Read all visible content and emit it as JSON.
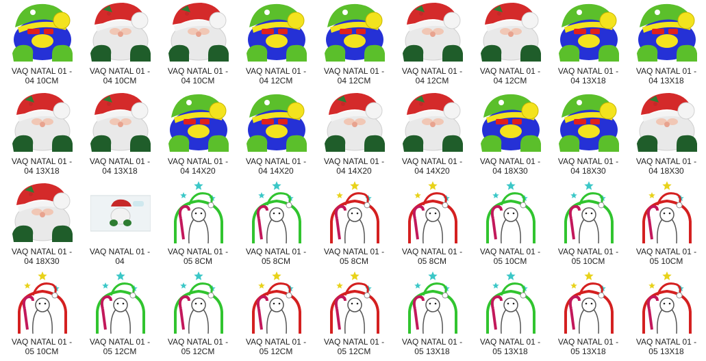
{
  "colors": {
    "santa_red": "#d42a2a",
    "santa_white": "#e9e9e9",
    "santa_green_dark": "#1f5d2a",
    "elf_green": "#5bbf2b",
    "elf_blue": "#2531d6",
    "elf_yellow": "#f3e31e",
    "elf_red": "#e0201c",
    "applique_red": "#d42020",
    "applique_green": "#31c42f",
    "star_cyan": "#3bc7c7",
    "star_yellow": "#e8d21a"
  },
  "files": [
    {
      "line1": "VAQ NATAL 01 -",
      "line2": "04 10CM",
      "icon": "elf-santa-icon"
    },
    {
      "line1": "VAQ NATAL 01 -",
      "line2": "04 10CM",
      "icon": "santa-face-icon"
    },
    {
      "line1": "VAQ NATAL 01 -",
      "line2": "04 10CM",
      "icon": "santa-face-icon"
    },
    {
      "line1": "VAQ NATAL 01 -",
      "line2": "04 12CM",
      "icon": "elf-santa-icon"
    },
    {
      "line1": "VAQ NATAL 01 -",
      "line2": "04 12CM",
      "icon": "elf-santa-icon"
    },
    {
      "line1": "VAQ NATAL 01 -",
      "line2": "04 12CM",
      "icon": "santa-face-icon"
    },
    {
      "line1": "VAQ NATAL 01 -",
      "line2": "04 12CM",
      "icon": "santa-face-icon"
    },
    {
      "line1": "VAQ NATAL 01 -",
      "line2": "04 13X18",
      "icon": "elf-santa-icon"
    },
    {
      "line1": "VAQ NATAL 01 -",
      "line2": "04 13X18",
      "icon": "elf-santa-icon"
    },
    {
      "line1": "VAQ NATAL 01 -",
      "line2": "04 13X18",
      "icon": "santa-face-icon"
    },
    {
      "line1": "VAQ NATAL 01 -",
      "line2": "04 13X18",
      "icon": "santa-face-icon"
    },
    {
      "line1": "VAQ NATAL 01 -",
      "line2": "04 14X20",
      "icon": "elf-santa-icon"
    },
    {
      "line1": "VAQ NATAL 01 -",
      "line2": "04 14X20",
      "icon": "elf-santa-icon"
    },
    {
      "line1": "VAQ NATAL 01 -",
      "line2": "04 14X20",
      "icon": "santa-face-icon"
    },
    {
      "line1": "VAQ NATAL 01 -",
      "line2": "04 14X20",
      "icon": "santa-face-icon"
    },
    {
      "line1": "VAQ NATAL 01 -",
      "line2": "04 18X30",
      "icon": "elf-santa-icon"
    },
    {
      "line1": "VAQ NATAL 01 -",
      "line2": "04 18X30",
      "icon": "elf-santa-icon"
    },
    {
      "line1": "VAQ NATAL 01 -",
      "line2": "04 18X30",
      "icon": "santa-face-icon"
    },
    {
      "line1": "VAQ NATAL 01 -",
      "line2": "04 18X30",
      "icon": "santa-face-icon"
    },
    {
      "line1": "VAQ NATAL 01 -",
      "line2": "04",
      "icon": "photo-preview-icon"
    },
    {
      "line1": "VAQ NATAL 01 -",
      "line2": "05 8CM",
      "icon": "applique-green-icon"
    },
    {
      "line1": "VAQ NATAL 01 -",
      "line2": "05 8CM",
      "icon": "applique-green-icon"
    },
    {
      "line1": "VAQ NATAL 01 -",
      "line2": "05 8CM",
      "icon": "applique-red-icon"
    },
    {
      "line1": "VAQ NATAL 01 -",
      "line2": "05 8CM",
      "icon": "applique-red-icon"
    },
    {
      "line1": "VAQ NATAL 01 -",
      "line2": "05 10CM",
      "icon": "applique-green-icon"
    },
    {
      "line1": "VAQ NATAL 01 -",
      "line2": "05 10CM",
      "icon": "applique-green-icon"
    },
    {
      "line1": "VAQ NATAL 01 -",
      "line2": "05 10CM",
      "icon": "applique-red-icon"
    },
    {
      "line1": "VAQ NATAL 01 -",
      "line2": "05 10CM",
      "icon": "applique-red-icon"
    },
    {
      "line1": "VAQ NATAL 01 -",
      "line2": "05 12CM",
      "icon": "applique-green-icon"
    },
    {
      "line1": "VAQ NATAL 01 -",
      "line2": "05 12CM",
      "icon": "applique-green-icon"
    },
    {
      "line1": "VAQ NATAL 01 -",
      "line2": "05 12CM",
      "icon": "applique-red-icon"
    },
    {
      "line1": "VAQ NATAL 01 -",
      "line2": "05 12CM",
      "icon": "applique-red-icon"
    },
    {
      "line1": "VAQ NATAL 01 -",
      "line2": "05 13X18",
      "icon": "applique-green-icon"
    },
    {
      "line1": "VAQ NATAL 01 -",
      "line2": "05 13X18",
      "icon": "applique-green-icon"
    },
    {
      "line1": "VAQ NATAL 01 -",
      "line2": "05 13X18",
      "icon": "applique-red-icon"
    },
    {
      "line1": "VAQ NATAL 01 -",
      "line2": "05 13X18",
      "icon": "applique-red-icon"
    }
  ]
}
